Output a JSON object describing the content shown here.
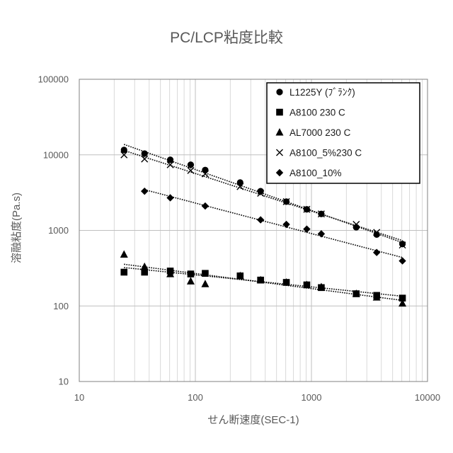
{
  "chart_data": {
    "type": "scatter",
    "title": "PC/LCP粘度比較",
    "xlabel": "せん断速度(SEC-1)",
    "ylabel": "溶融粘度(Pa.s)",
    "xscale": "log",
    "yscale": "log",
    "xlim": [
      10,
      10000
    ],
    "ylim": [
      10,
      100000
    ],
    "xticks": [
      "10",
      "100",
      "1000",
      "10000"
    ],
    "yticks": [
      "10",
      "100",
      "1000",
      "10000",
      "100000"
    ],
    "grid": {
      "x_major": true,
      "x_minor": true,
      "y_major": true,
      "y_minor": false
    },
    "legend": "top-right",
    "series": [
      {
        "name": "L1225Y (ﾌﾞﾗﾝｸ)",
        "marker": "circle",
        "color": "#000000",
        "trendline": "dotted",
        "x": [
          24.3,
          36.5,
          60.8,
          91.2,
          121.6,
          243.2,
          364.8,
          608,
          912,
          1216,
          2432,
          3648,
          6080
        ],
        "y": [
          11600,
          10400,
          8600,
          7400,
          6300,
          4300,
          3300,
          2400,
          1900,
          1650,
          1100,
          880,
          660
        ]
      },
      {
        "name": "A8100 230 C",
        "marker": "square",
        "color": "#000000",
        "trendline": "dotted",
        "x": [
          24.3,
          36.5,
          60.8,
          91.2,
          121.6,
          243.2,
          364.8,
          608,
          912,
          1216,
          2432,
          3648,
          6080
        ],
        "y": [
          280,
          280,
          290,
          265,
          270,
          250,
          220,
          205,
          190,
          175,
          145,
          138,
          127
        ]
      },
      {
        "name": "AL7000 230 C",
        "marker": "triangle",
        "color": "#000000",
        "trendline": "dotted",
        "x": [
          24.3,
          36.5,
          60.8,
          91.2,
          121.6,
          243.2,
          364.8,
          608,
          912,
          1216,
          2432,
          3648,
          6080
        ],
        "y": [
          480,
          330,
          265,
          212,
          195,
          250,
          220,
          205,
          190,
          178,
          145,
          130,
          108
        ]
      },
      {
        "name": "A8100_5%230 C",
        "marker": "x",
        "color": "#000000",
        "trendline": "dotted",
        "x": [
          24.3,
          36.5,
          60.8,
          91.2,
          121.6,
          243.2,
          364.8,
          608,
          912,
          1216,
          2432,
          3648,
          6080
        ],
        "y": [
          10000,
          8800,
          7400,
          6200,
          5600,
          3800,
          3100,
          2400,
          1900,
          1650,
          1200,
          940,
          640
        ]
      },
      {
        "name": "A8100_10%",
        "marker": "diamond",
        "color": "#000000",
        "trendline": "dotted",
        "x": [
          36.5,
          60.8,
          121.6,
          364.8,
          608,
          912,
          1216,
          3648,
          6080
        ],
        "y": [
          3300,
          2700,
          2100,
          1380,
          1200,
          1040,
          900,
          510,
          395
        ]
      }
    ]
  }
}
